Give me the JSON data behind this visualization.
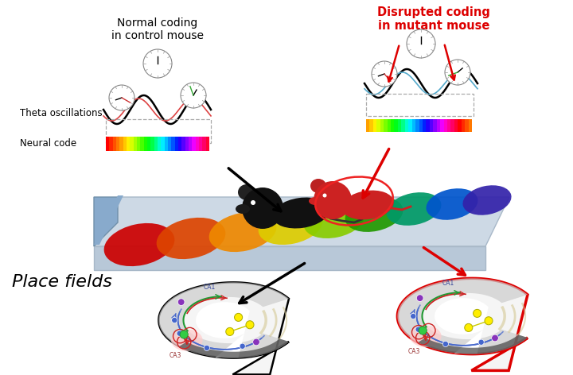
{
  "bg_color": "#ffffff",
  "normal_label": "Normal coding\nin control mouse",
  "disrupted_label": "Disrupted coding\nin mutant mouse",
  "theta_label": "Theta oscillations",
  "neural_label": "Neural code",
  "place_label": "Place fields",
  "rainbow_colors": [
    "#ff0000",
    "#ff2800",
    "#ff5000",
    "#ff7800",
    "#ffa000",
    "#ffc800",
    "#fff000",
    "#d8ff00",
    "#a8ff00",
    "#78ff00",
    "#48ff00",
    "#18ff00",
    "#00ff18",
    "#00ff48",
    "#00ff88",
    "#00ffcc",
    "#00eeff",
    "#00bbff",
    "#0088ff",
    "#0055ff",
    "#0022ff",
    "#2200ff",
    "#5500ff",
    "#8800ff",
    "#bb00ff",
    "#ee00ff",
    "#ff00cc",
    "#ff0099",
    "#ff0066",
    "#ff0033"
  ],
  "track_color_top": "#cdd9e5",
  "track_color_side": "#b0bec8",
  "track_color_front": "#e8eef4",
  "place_field_colors": [
    "#cc0000",
    "#dd4400",
    "#ee8800",
    "#ddcc00",
    "#88cc00",
    "#229900",
    "#009966",
    "#0055cc",
    "#3322aa",
    "#660099"
  ],
  "ca1_color": "#4466cc",
  "ca3_color": "#cc2222"
}
